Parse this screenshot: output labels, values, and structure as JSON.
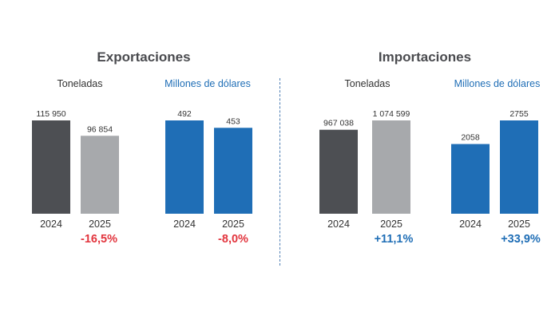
{
  "panels": [
    {
      "title": "Exportaciones"
    },
    {
      "title": "Importaciones"
    }
  ],
  "colors": {
    "tonnes_2024": "#4d4f53",
    "tonnes_2025": "#a7a9ac",
    "usd_2024": "#1f6eb6",
    "usd_2025": "#1f6eb6",
    "usd_label": "#1f6eb6",
    "negative": "#e2343d",
    "positive": "#1f6eb6"
  },
  "chart_data": [
    {
      "type": "bar",
      "panel": "Exportaciones",
      "title": "Toneladas",
      "categories": [
        "2024",
        "2025"
      ],
      "values": [
        115950,
        96854
      ],
      "value_labels": [
        "115 950",
        "96 854"
      ],
      "change_label": "-16,5%",
      "change_sign": "negative",
      "ylim": [
        0,
        115950
      ]
    },
    {
      "type": "bar",
      "panel": "Exportaciones",
      "title": "Millones de dólares",
      "categories": [
        "2024",
        "2025"
      ],
      "values": [
        492,
        453
      ],
      "value_labels": [
        "492",
        "453"
      ],
      "change_label": "-8,0%",
      "change_sign": "negative",
      "ylim": [
        0,
        492
      ]
    },
    {
      "type": "bar",
      "panel": "Importaciones",
      "title": "Toneladas",
      "categories": [
        "2024",
        "2025"
      ],
      "values": [
        967038,
        1074599
      ],
      "value_labels": [
        "967 038",
        "1 074 599"
      ],
      "change_label": "+11,1%",
      "change_sign": "positive",
      "ylim": [
        0,
        1074599
      ]
    },
    {
      "type": "bar",
      "panel": "Importaciones",
      "title": "Millones de dólares",
      "categories": [
        "2024",
        "2025"
      ],
      "values": [
        2058,
        2755
      ],
      "value_labels": [
        "2058",
        "2755"
      ],
      "change_label": "+33,9%",
      "change_sign": "positive",
      "ylim": [
        0,
        2755
      ]
    }
  ]
}
